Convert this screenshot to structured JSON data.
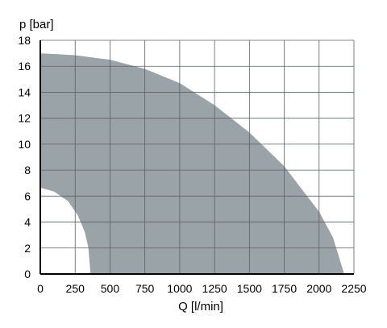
{
  "chart_data": {
    "type": "area",
    "ylabel": "p [bar]",
    "xlabel": "Q [l/min]",
    "xlim": [
      0,
      2250
    ],
    "ylim": [
      0,
      18
    ],
    "x_ticks": [
      "0",
      "250",
      "500",
      "750",
      "1000",
      "1250",
      "1500",
      "1750",
      "2000",
      "2250"
    ],
    "y_ticks": [
      "0",
      "2",
      "4",
      "6",
      "8",
      "10",
      "12",
      "14",
      "16",
      "18"
    ],
    "grid": true,
    "region": {
      "outer_boundary": [
        [
          0,
          17.0
        ],
        [
          250,
          16.85
        ],
        [
          500,
          16.5
        ],
        [
          750,
          15.8
        ],
        [
          1000,
          14.7
        ],
        [
          1250,
          13.0
        ],
        [
          1500,
          10.9
        ],
        [
          1750,
          8.3
        ],
        [
          2000,
          4.8
        ],
        [
          2100,
          2.8
        ],
        [
          2180,
          0
        ]
      ],
      "inner_boundary": [
        [
          0,
          6.65
        ],
        [
          100,
          6.35
        ],
        [
          200,
          5.6
        ],
        [
          270,
          4.5
        ],
        [
          320,
          3.2
        ],
        [
          345,
          2.0
        ],
        [
          360,
          0
        ]
      ]
    },
    "colors": {
      "fill": "#9aa3a8",
      "grid": "#5a6166",
      "axis": "#000000",
      "text": "#000000"
    }
  }
}
